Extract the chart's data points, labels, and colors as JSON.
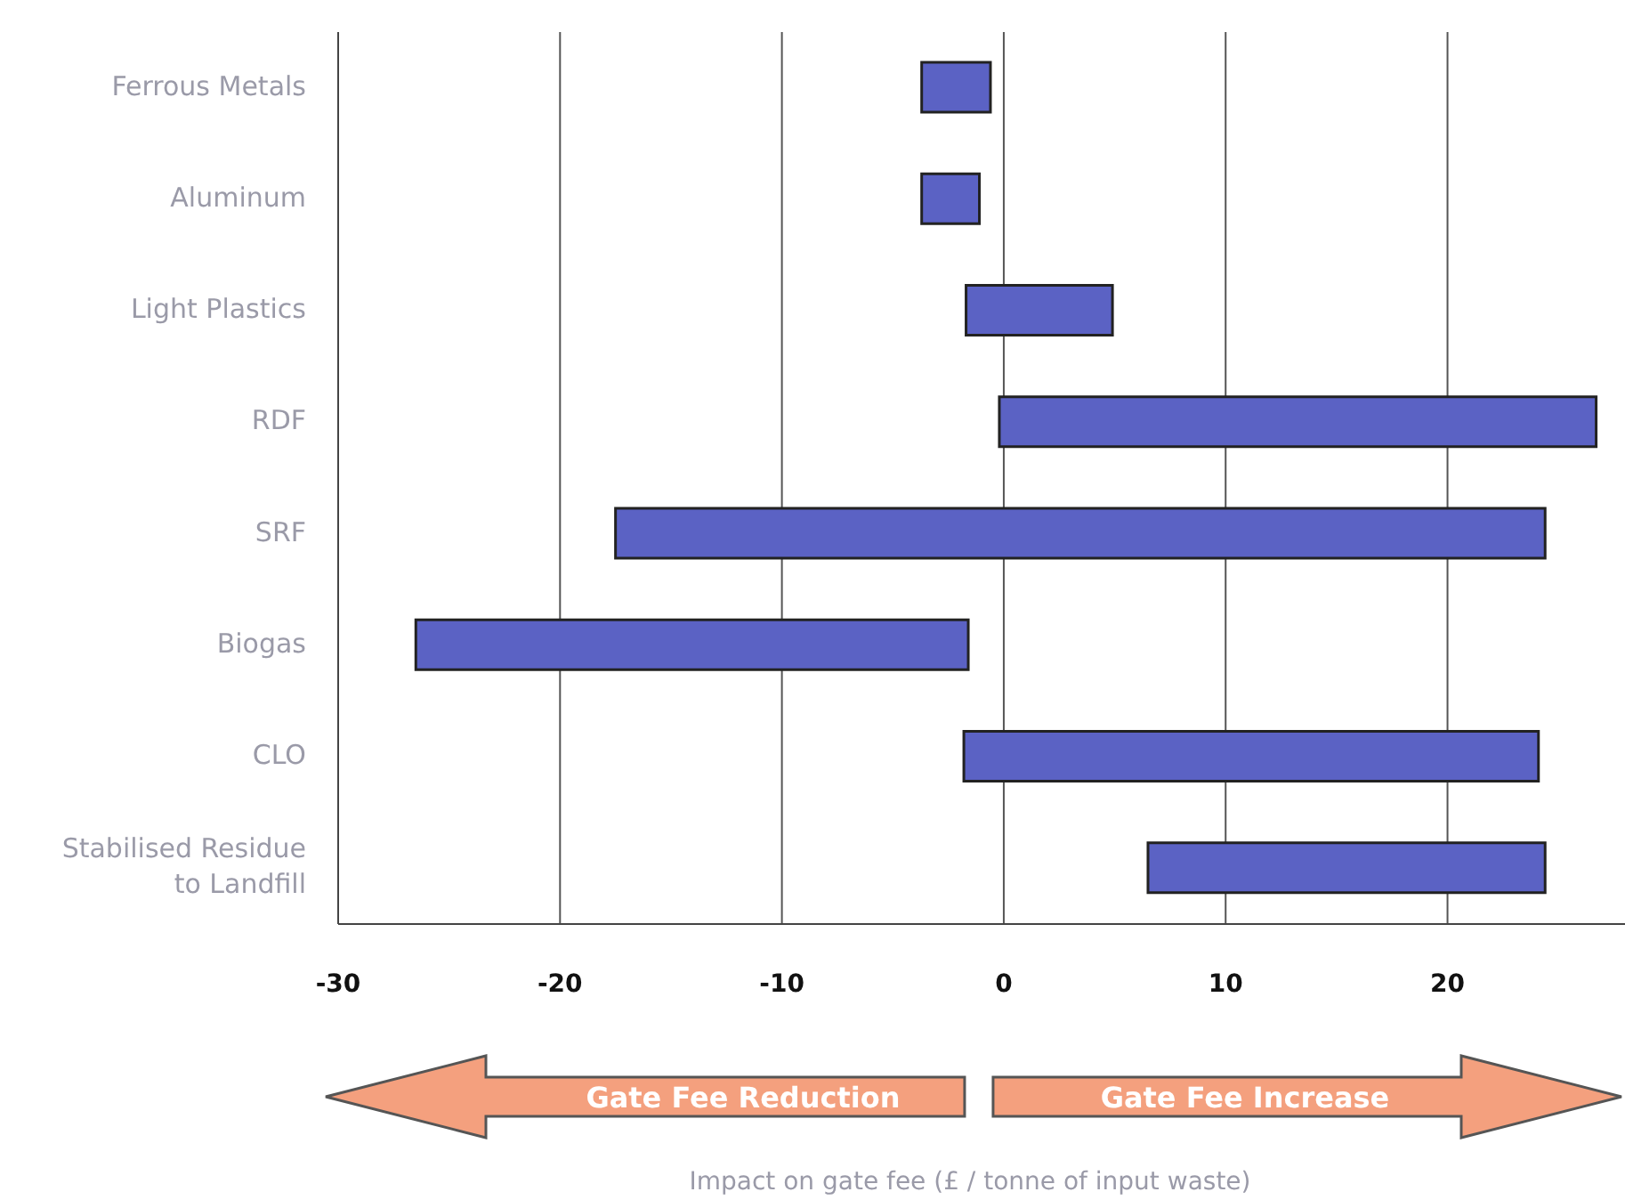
{
  "chart_data": {
    "type": "bar",
    "orientation": "horizontal",
    "categories": [
      "Ferrous Metals",
      "Aluminum",
      "Light Plastics",
      "RDF",
      "SRF",
      "Biogas",
      "CLO",
      "Stabilised Residue to Landfill"
    ],
    "base": [
      -3.7,
      -3.7,
      -1.7,
      -0.2,
      -17.5,
      -26.5,
      -1.8,
      6.5
    ],
    "values": [
      3.1,
      2.6,
      6.6,
      26.9,
      41.9,
      24.9,
      25.9,
      17.9
    ],
    "color": "#5b62c4",
    "xlim": [
      -30,
      28
    ],
    "xticks": [
      -30,
      -20,
      -10,
      0,
      10,
      20
    ],
    "annotations": [
      "Gate Fee Reduction",
      "Gate Fee Increase",
      "Impact on gate fee (£ / tonne of input waste)"
    ],
    "grid": "x",
    "legend": false
  }
}
